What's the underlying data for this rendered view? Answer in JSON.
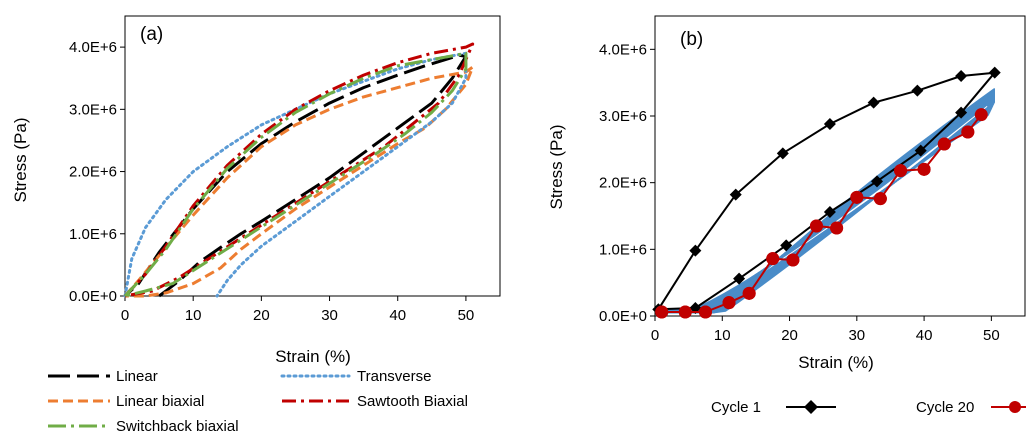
{
  "figure": {
    "background": "#ffffff"
  },
  "chart_data": [
    {
      "panel_label": "(a)",
      "type": "line",
      "xlabel": "Strain (%)",
      "ylabel": "Stress (Pa)",
      "xlim": [
        0,
        55
      ],
      "ylim": [
        0,
        4500000
      ],
      "xticks": [
        0,
        10,
        20,
        30,
        40,
        50
      ],
      "xtick_labels": [
        "0",
        "10",
        "20",
        "30",
        "40",
        "50"
      ],
      "yticks": [
        0,
        1000000,
        2000000,
        3000000,
        4000000
      ],
      "ytick_labels": [
        "0.0E+0",
        "1.0E+6",
        "2.0E+6",
        "3.0E+6",
        "4.0E+6"
      ],
      "grid": false,
      "legend_position": "below",
      "series": [
        {
          "name": "Linear",
          "color": "#000000",
          "dash": "long-dash",
          "x": [
            5,
            6,
            8,
            11,
            14,
            17,
            20,
            25,
            30,
            35,
            40,
            45,
            48,
            50,
            49,
            47,
            44,
            40,
            35,
            30,
            25,
            20,
            15,
            10,
            5,
            2,
            0
          ],
          "y": [
            0,
            80000,
            250000,
            550000,
            780000,
            1000000,
            1200000,
            1550000,
            1900000,
            2300000,
            2700000,
            3100000,
            3500000,
            3850000,
            3870000,
            3800000,
            3700000,
            3550000,
            3350000,
            3100000,
            2800000,
            2450000,
            2000000,
            1400000,
            700000,
            200000,
            0
          ]
        },
        {
          "name": "Linear biaxial",
          "color": "#ed7d31",
          "dash": "dash",
          "x": [
            0,
            2,
            5,
            10,
            15,
            20,
            25,
            30,
            35,
            40,
            45,
            50,
            51,
            50,
            47,
            44,
            40,
            35,
            30,
            25,
            20,
            17,
            14,
            10,
            6,
            3,
            0
          ],
          "y": [
            0,
            250000,
            650000,
            1300000,
            1900000,
            2400000,
            2750000,
            3000000,
            3200000,
            3350000,
            3500000,
            3600000,
            3680000,
            3400000,
            3000000,
            2700000,
            2450000,
            2100000,
            1750000,
            1400000,
            1000000,
            750000,
            450000,
            200000,
            50000,
            0,
            0
          ]
        },
        {
          "name": "Transverse",
          "color": "#5b9bd5",
          "dash": "dot",
          "x": [
            0,
            1,
            3,
            6,
            10,
            15,
            20,
            25,
            30,
            35,
            40,
            45,
            50,
            50,
            48,
            45,
            40,
            35,
            30,
            25,
            20,
            17,
            15,
            13.5
          ],
          "y": [
            0,
            600000,
            1100000,
            1550000,
            2000000,
            2400000,
            2750000,
            3000000,
            3250000,
            3450000,
            3650000,
            3800000,
            3900000,
            3500000,
            3100000,
            2800000,
            2400000,
            2000000,
            1600000,
            1200000,
            800000,
            500000,
            250000,
            0
          ]
        },
        {
          "name": "Sawtooth Biaxial",
          "color": "#c00000",
          "dash": "dash-dot",
          "x": [
            0,
            3,
            6,
            10,
            15,
            20,
            25,
            30,
            35,
            40,
            45,
            50,
            51,
            49,
            46,
            42,
            38,
            33,
            28,
            23,
            18,
            13,
            8,
            4,
            0
          ],
          "y": [
            0,
            350000,
            800000,
            1450000,
            2100000,
            2600000,
            3000000,
            3300000,
            3550000,
            3750000,
            3900000,
            4000000,
            4050000,
            3550000,
            3100000,
            2750000,
            2400000,
            2050000,
            1700000,
            1350000,
            1000000,
            650000,
            300000,
            80000,
            0
          ]
        },
        {
          "name": "Switchback biaxial",
          "color": "#70ad47",
          "dash": "long-dash-dot",
          "x": [
            0,
            3,
            6,
            10,
            15,
            20,
            25,
            30,
            35,
            40,
            45,
            50,
            50,
            48,
            45,
            41,
            37,
            32,
            27,
            22,
            17,
            12,
            7,
            3,
            0
          ],
          "y": [
            0,
            350000,
            750000,
            1400000,
            2050000,
            2550000,
            2950000,
            3250000,
            3500000,
            3700000,
            3800000,
            3900000,
            3650000,
            3300000,
            2950000,
            2600000,
            2300000,
            1950000,
            1600000,
            1250000,
            900000,
            550000,
            200000,
            80000,
            0
          ]
        }
      ]
    },
    {
      "panel_label": "(b)",
      "type": "line",
      "xlabel": "Strain (%)",
      "ylabel": "Stress (Pa)",
      "xlim": [
        0,
        55
      ],
      "ylim": [
        0,
        4500000
      ],
      "xticks": [
        0,
        10,
        20,
        30,
        40,
        50
      ],
      "xtick_labels": [
        "0",
        "10",
        "20",
        "30",
        "40",
        "50"
      ],
      "yticks": [
        0,
        1000000,
        2000000,
        3000000,
        4000000
      ],
      "ytick_labels": [
        "0.0E+0",
        "1.0E+6",
        "2.0E+6",
        "3.0E+6",
        "4.0E+6"
      ],
      "grid": false,
      "legend_position": "below",
      "intermediate_cycles_color": "#4a8cc8",
      "intermediate_cycles_count": 18,
      "series": [
        {
          "name": "Cycle 1",
          "color": "#000000",
          "marker": "diamond",
          "x": [
            0.5,
            6,
            12,
            19,
            26,
            32.5,
            39,
            45.5,
            50.5,
            45.5,
            39.5,
            33,
            26,
            19.5,
            12.5,
            6,
            0.5
          ],
          "y": [
            100000,
            980000,
            1820000,
            2440000,
            2880000,
            3200000,
            3380000,
            3600000,
            3650000,
            3050000,
            2480000,
            2020000,
            1560000,
            1060000,
            560000,
            120000,
            100000
          ]
        },
        {
          "name": "Cycle 20",
          "color": "#c00000",
          "marker": "circle",
          "x": [
            1,
            4.5,
            7.5,
            11,
            14,
            17.5,
            20.5,
            24,
            27,
            30,
            33.5,
            36.5,
            40,
            43,
            46.5,
            48.5,
            46.5,
            43,
            40,
            36.5,
            33.5,
            30,
            27,
            24,
            20.5,
            17.5,
            14,
            11,
            7.5,
            4.5,
            1
          ],
          "y": [
            60000,
            60000,
            60000,
            200000,
            340000,
            860000,
            840000,
            1350000,
            1320000,
            1780000,
            1760000,
            2180000,
            2200000,
            2580000,
            2760000,
            3020000,
            2760000,
            2580000,
            2200000,
            2180000,
            1760000,
            1780000,
            1320000,
            1350000,
            840000,
            860000,
            340000,
            200000,
            60000,
            60000,
            60000
          ]
        }
      ]
    }
  ]
}
